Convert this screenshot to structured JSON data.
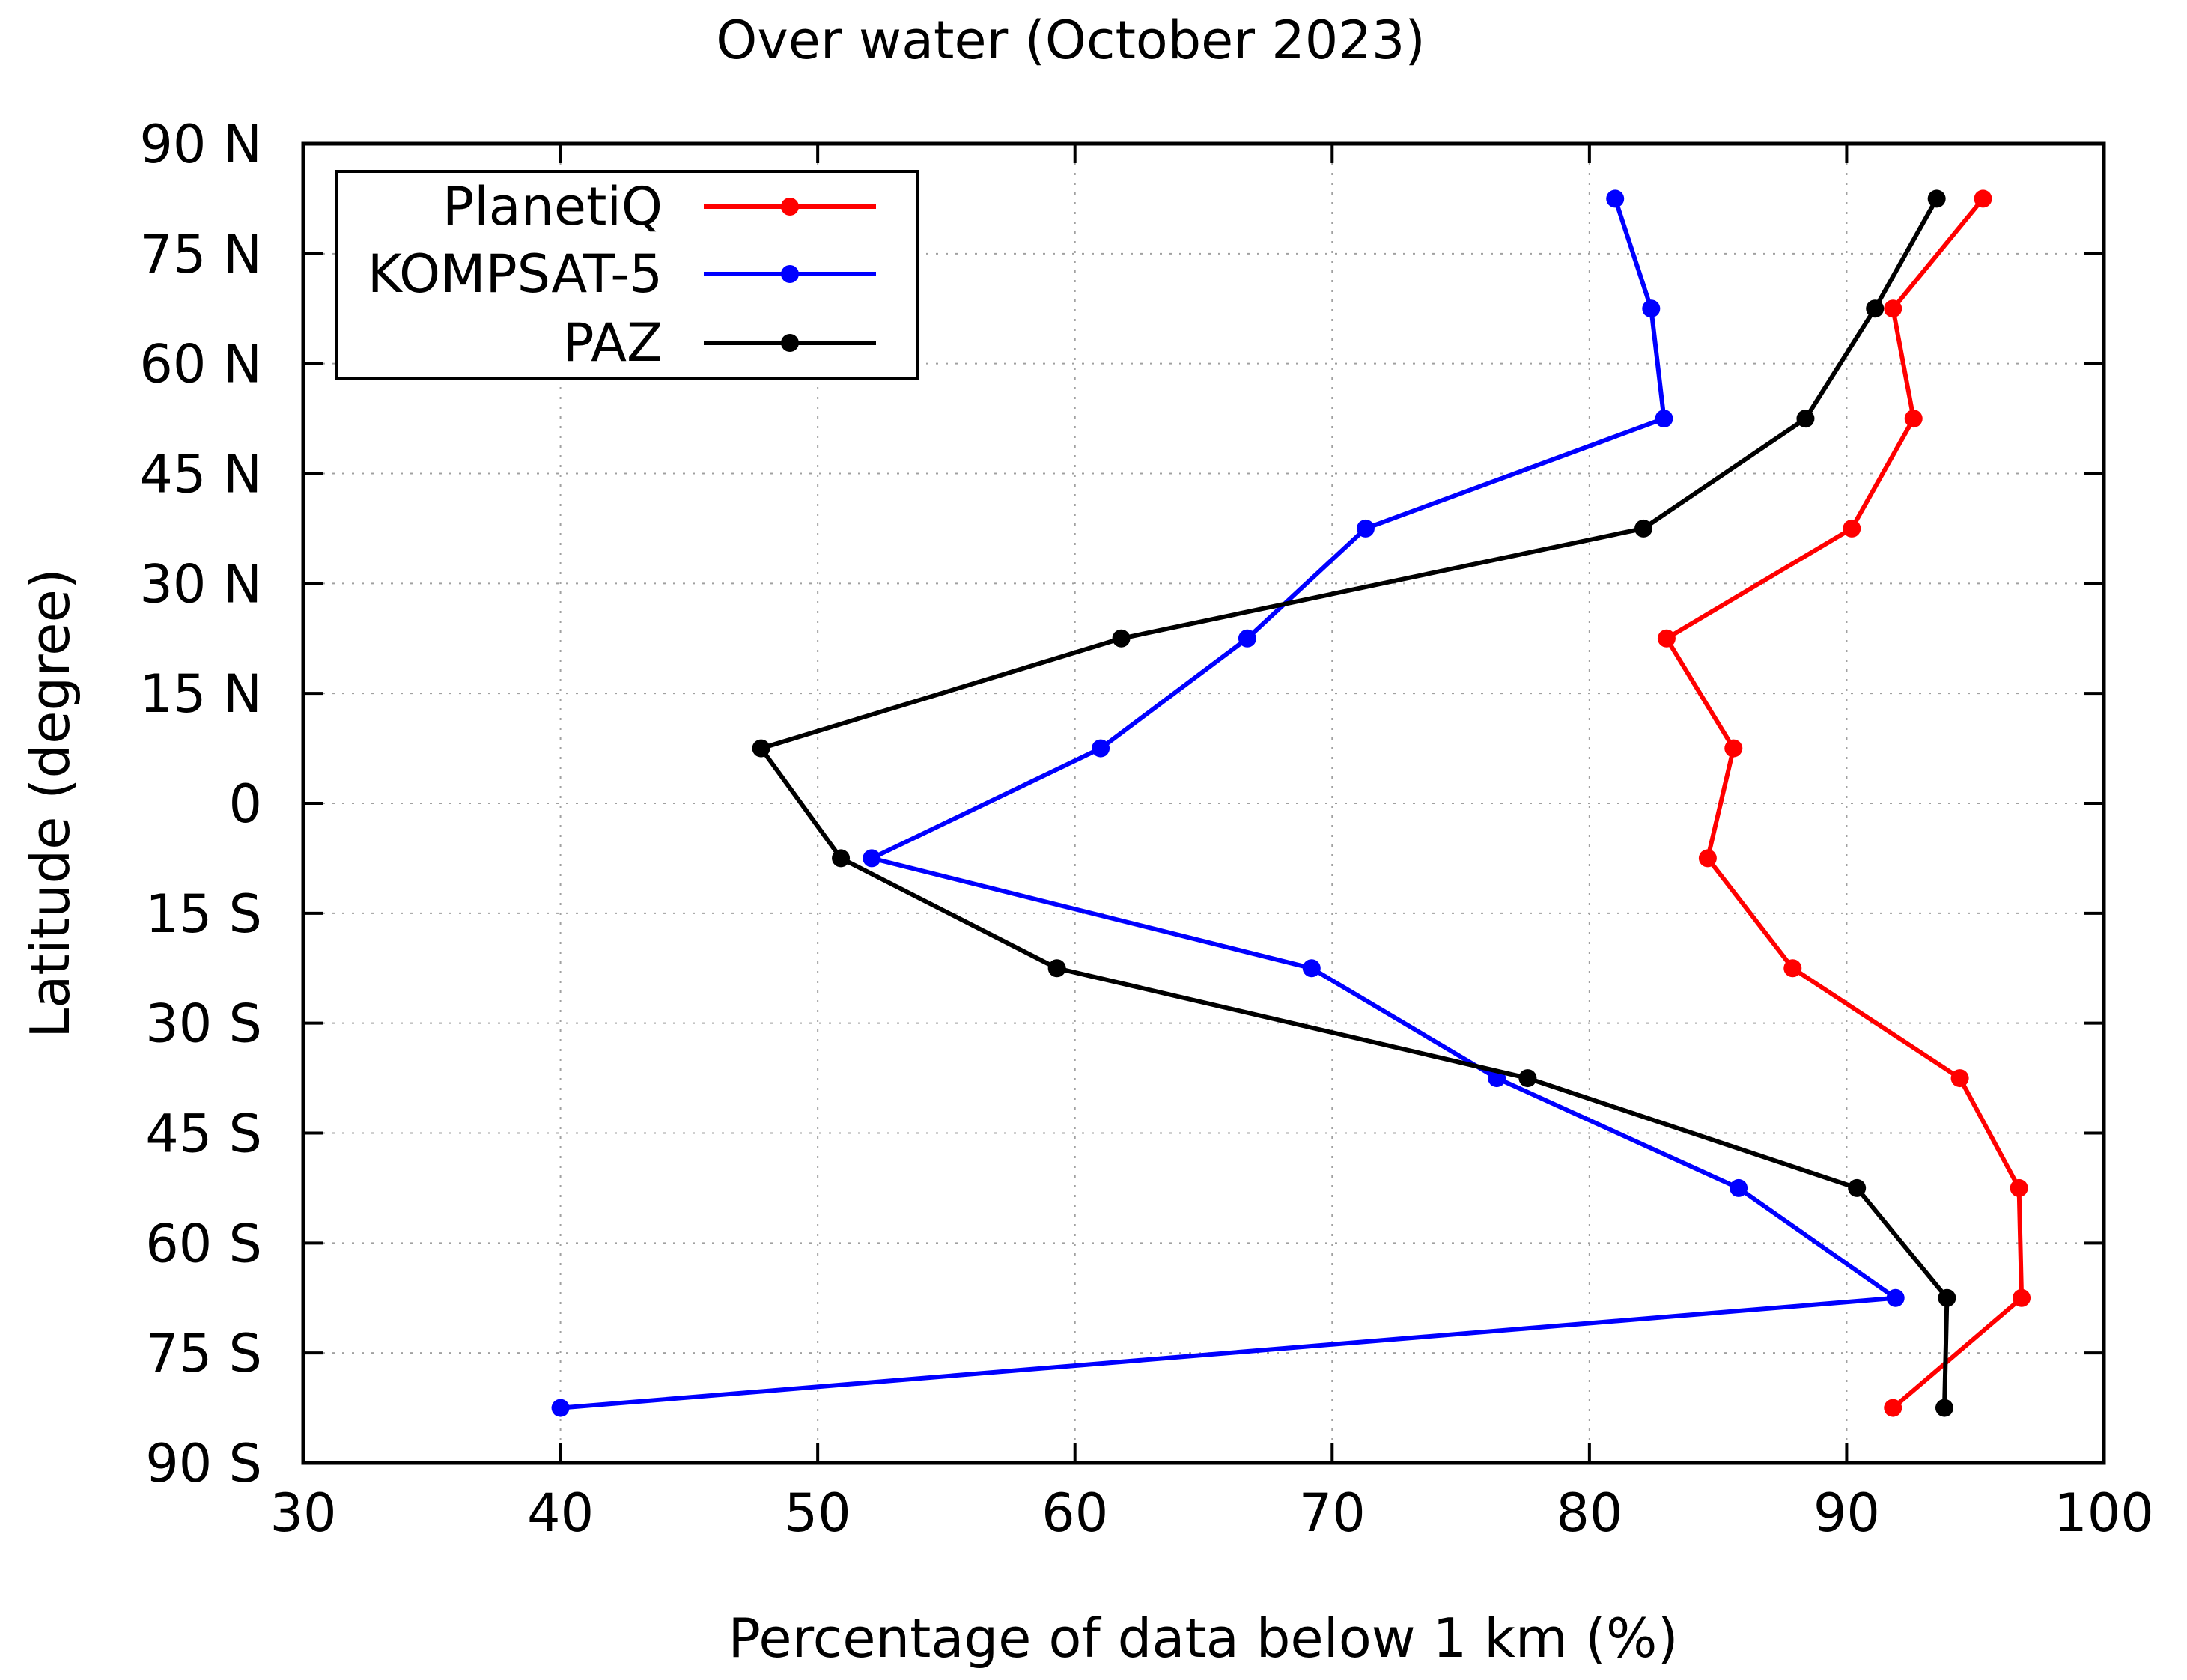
{
  "chart_data": {
    "type": "line",
    "title": "Over water (October 2023)",
    "xlabel": "Percentage of data below 1 km (%)",
    "ylabel": "Latitude (degree)",
    "xlim": [
      30,
      100
    ],
    "ylim": [
      -90,
      90
    ],
    "x_ticks": [
      30,
      40,
      50,
      60,
      70,
      80,
      90,
      100
    ],
    "x_tick_labels": [
      "30",
      "40",
      "50",
      "60",
      "70",
      "80",
      "90",
      "100"
    ],
    "y_ticks": [
      90,
      75,
      60,
      45,
      30,
      15,
      0,
      -15,
      -30,
      -45,
      -60,
      -75,
      -90
    ],
    "y_tick_labels": [
      "90 N",
      "75 N",
      "60 N",
      "45 N",
      "30 N",
      "15 N",
      "0",
      "15 S",
      "30 S",
      "45 S",
      "60 S",
      "75 S",
      "90 S"
    ],
    "grid": true,
    "legend_position": "top-left",
    "latitudes": [
      82.5,
      67.5,
      52.5,
      37.5,
      22.5,
      7.5,
      -7.5,
      -22.5,
      -37.5,
      -52.5,
      -67.5,
      -82.5
    ],
    "series": [
      {
        "name": "PlanetiQ",
        "color": "#ff0000",
        "values": [
          95.3,
          91.8,
          92.6,
          90.2,
          83.0,
          85.6,
          84.6,
          87.9,
          94.4,
          96.7,
          96.8,
          91.8
        ]
      },
      {
        "name": "KOMPSAT-5",
        "color": "#0000ff",
        "values": [
          81.0,
          82.4,
          82.9,
          71.3,
          66.7,
          61.0,
          52.1,
          69.2,
          76.4,
          85.8,
          91.9,
          40.0
        ]
      },
      {
        "name": "PAZ",
        "color": "#000000",
        "values": [
          93.5,
          91.1,
          88.4,
          82.1,
          61.8,
          47.8,
          50.9,
          59.3,
          77.6,
          90.4,
          93.9,
          93.8
        ]
      }
    ]
  }
}
